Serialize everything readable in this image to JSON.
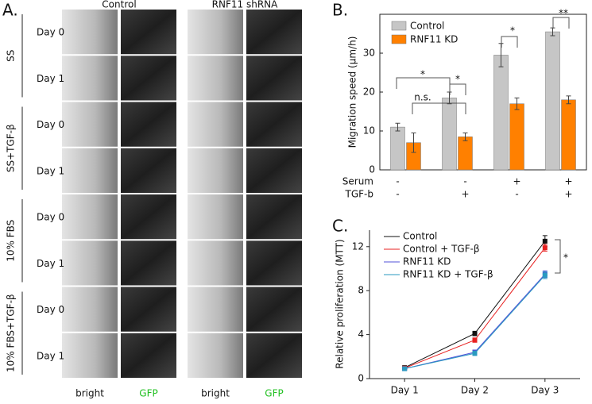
{
  "panel_a": {
    "panel_label": "A.",
    "column_groups": [
      "Control",
      "RNF11 shRNA"
    ],
    "row_groups": [
      "SS",
      "SS+TGF-β",
      "10% FBS",
      "10% FBS+TGF-β"
    ],
    "days": [
      "Day 0",
      "Day 1"
    ],
    "columns": [
      "bright",
      "GFP",
      "bright",
      "GFP"
    ]
  },
  "chart_data": [
    {
      "type": "bar",
      "panel_label": "B.",
      "ylabel": "Migration speed (µm/h)",
      "categories": [
        null,
        null,
        null,
        null
      ],
      "series": [
        {
          "name": "Control",
          "color": "#c6c6c6",
          "values": [
            11,
            18.5,
            29.5,
            35.5
          ],
          "errors": [
            1,
            1.5,
            3,
            1
          ]
        },
        {
          "name": "RNF11 KD",
          "color": "#ff8000",
          "values": [
            7,
            8.5,
            17,
            18
          ],
          "errors": [
            2.5,
            1,
            1.5,
            1
          ]
        }
      ],
      "conditions": [
        {
          "name": "Serum",
          "values": [
            "-",
            "-",
            "+",
            "+"
          ]
        },
        {
          "name": "TGF-b",
          "values": [
            "-",
            "+",
            "-",
            "+"
          ]
        }
      ],
      "annotations": [
        "*",
        "*",
        "n.s.",
        "*",
        "**"
      ],
      "ylim": [
        0,
        40
      ],
      "yticks": [
        0,
        10,
        20,
        30
      ]
    },
    {
      "type": "line",
      "panel_label": "C.",
      "ylabel": "Relative proliferation (MTT)",
      "categories": [
        "Day 1",
        "Day 2",
        "Day 3"
      ],
      "series": [
        {
          "name": "Control",
          "color": "#111111",
          "values": [
            1.0,
            4.1,
            12.5
          ],
          "errors": [
            0.1,
            0.2,
            0.5
          ]
        },
        {
          "name": "Control + TGF-β",
          "color": "#e82020",
          "values": [
            0.95,
            3.5,
            11.9
          ],
          "errors": [
            0.1,
            0.2,
            0.3
          ]
        },
        {
          "name": "RNF11 KD",
          "color": "#5050d8",
          "values": [
            0.9,
            2.4,
            9.5
          ],
          "errors": [
            0.1,
            0.2,
            0.3
          ]
        },
        {
          "name": "RNF11 KD + TGF-β",
          "color": "#2a9ac0",
          "values": [
            0.9,
            2.3,
            9.4
          ],
          "errors": [
            0.1,
            0.2,
            0.3
          ]
        }
      ],
      "annotations": [
        "*"
      ],
      "ylim": [
        0,
        13.5
      ],
      "yticks": [
        0,
        4,
        8,
        12
      ]
    }
  ]
}
